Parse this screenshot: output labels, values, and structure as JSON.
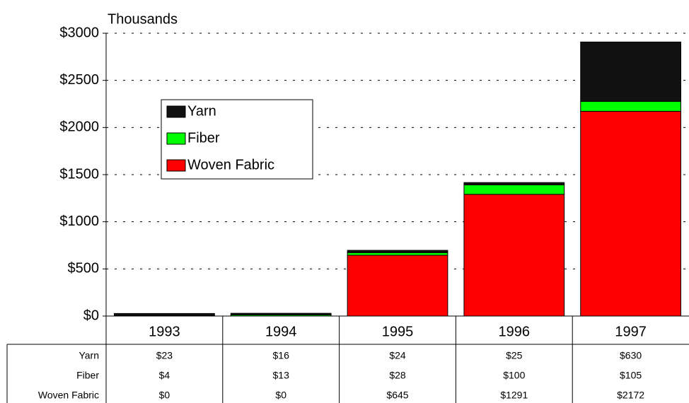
{
  "chart_data": {
    "type": "stacked-bar",
    "y_label": "Thousands",
    "categories": [
      "1993",
      "1994",
      "1995",
      "1996",
      "1997"
    ],
    "series": [
      {
        "name": "Yarn",
        "color": "#111111",
        "values": [
          23,
          16,
          24,
          25,
          630
        ],
        "value_labels": [
          "$23",
          "$16",
          "$24",
          "$25",
          "$630"
        ]
      },
      {
        "name": "Fiber",
        "color": "#00ff00",
        "values": [
          4,
          13,
          28,
          100,
          105
        ],
        "value_labels": [
          "$4",
          "$13",
          "$28",
          "$100",
          "$105"
        ]
      },
      {
        "name": "Woven Fabric",
        "color": "#ff0000",
        "values": [
          0,
          0,
          645,
          1291,
          2172
        ],
        "value_labels": [
          "$0",
          "$0",
          "$645",
          "$1291",
          "$2172"
        ]
      }
    ],
    "ylim": [
      0,
      3000
    ],
    "yticks": [
      {
        "value": 0,
        "label": "$0"
      },
      {
        "value": 500,
        "label": "$500"
      },
      {
        "value": 1000,
        "label": "$1000"
      },
      {
        "value": 1500,
        "label": "$1500"
      },
      {
        "value": 2000,
        "label": "$2000"
      },
      {
        "value": 2500,
        "label": "$2500"
      },
      {
        "value": 3000,
        "label": "$3000"
      }
    ],
    "grid": true
  }
}
